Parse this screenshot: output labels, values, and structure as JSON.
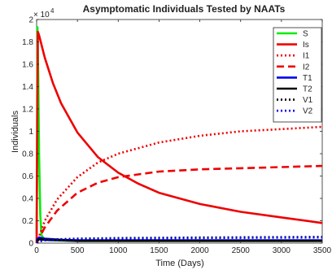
{
  "chart_data": {
    "type": "line",
    "title": "Asymptomatic Individuals Tested by NAATs",
    "xlabel": "Time (Days)",
    "ylabel": "Individuals",
    "xlim": [
      0,
      3500
    ],
    "ylim": [
      0,
      20000
    ],
    "x_ticks": [
      "0",
      "500",
      "1000",
      "1500",
      "2000",
      "2500",
      "3000",
      "3500"
    ],
    "y_ticks": [
      "0",
      "0.2",
      "0.4",
      "0.6",
      "0.8",
      "1",
      "1.2",
      "1.4",
      "1.6",
      "1.8",
      "2"
    ],
    "y_exponent_base": "× 10",
    "y_exponent_power": "4",
    "legend_position": "top-right",
    "grid": false,
    "series": [
      {
        "name": "S",
        "color": "#00ee00",
        "dash": "solid",
        "x": [
          0,
          10,
          20,
          30,
          45,
          60,
          100,
          200,
          500,
          1000,
          2000,
          3500
        ],
        "y": [
          800,
          19300,
          15000,
          8000,
          2500,
          700,
          300,
          250,
          200,
          200,
          200,
          200
        ]
      },
      {
        "name": "Is",
        "color": "#ee0000",
        "dash": "solid",
        "x": [
          0,
          15,
          30,
          100,
          200,
          300,
          500,
          750,
          1000,
          1250,
          1500,
          1750,
          2000,
          2500,
          3000,
          3500
        ],
        "y": [
          0,
          18900,
          18600,
          16600,
          14300,
          12500,
          9900,
          7700,
          6300,
          5300,
          4500,
          4000,
          3500,
          2800,
          2300,
          1800
        ]
      },
      {
        "name": "I1",
        "color": "#ee0000",
        "dash": "dotted",
        "x": [
          0,
          20,
          100,
          250,
          500,
          750,
          1000,
          1500,
          2000,
          2500,
          3000,
          3500
        ],
        "y": [
          0,
          400,
          2000,
          3900,
          5900,
          7200,
          8000,
          9000,
          9600,
          10000,
          10200,
          10400
        ]
      },
      {
        "name": "I2",
        "color": "#ee0000",
        "dash": "dashed",
        "x": [
          0,
          20,
          100,
          250,
          500,
          750,
          1000,
          1500,
          2000,
          2500,
          3000,
          3500
        ],
        "y": [
          0,
          300,
          1400,
          2900,
          4500,
          5400,
          5900,
          6400,
          6600,
          6700,
          6800,
          6900
        ]
      },
      {
        "name": "T1",
        "color": "#0000ee",
        "dash": "solid",
        "x": [
          0,
          30,
          100,
          300,
          500,
          1000,
          2000,
          3500
        ],
        "y": [
          300,
          500,
          400,
          300,
          250,
          250,
          250,
          250
        ]
      },
      {
        "name": "T2",
        "color": "#000000",
        "dash": "solid",
        "x": [
          0,
          30,
          100,
          300,
          500,
          1000,
          2000,
          3500
        ],
        "y": [
          200,
          350,
          300,
          250,
          200,
          200,
          200,
          200
        ]
      },
      {
        "name": "V1",
        "color": "#000000",
        "dash": "dotted",
        "x": [
          0,
          30,
          100,
          300,
          500,
          1000,
          2000,
          3500
        ],
        "y": [
          100,
          200,
          300,
          350,
          400,
          450,
          500,
          550
        ]
      },
      {
        "name": "V2",
        "color": "#0000ee",
        "dash": "dotted",
        "x": [
          0,
          30,
          100,
          300,
          500,
          1000,
          2000,
          3500
        ],
        "y": [
          50,
          150,
          250,
          300,
          350,
          400,
          450,
          500
        ]
      }
    ]
  }
}
